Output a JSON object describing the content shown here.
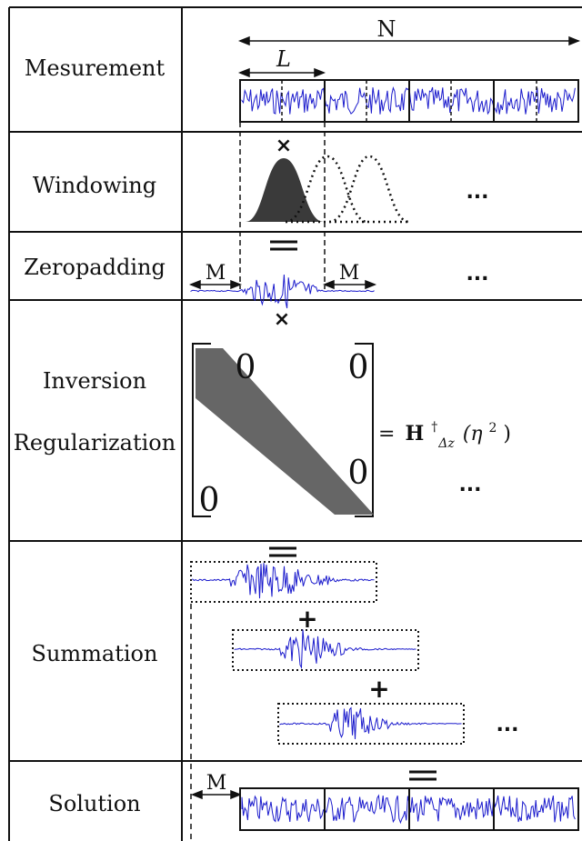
{
  "rows": [
    {
      "id": "measurement",
      "label": "Mesurement"
    },
    {
      "id": "windowing",
      "label": "Windowing"
    },
    {
      "id": "zeropadding",
      "label": "Zeropadding"
    },
    {
      "id": "inversion",
      "label_line1": "Inversion",
      "label_line2": "Regularization"
    },
    {
      "id": "summation",
      "label": "Summation"
    },
    {
      "id": "solution",
      "label": "Solution"
    }
  ],
  "symbols": {
    "N": "N",
    "L": "L",
    "M": "M",
    "ellipsis": "...",
    "zero": "0",
    "times": "×",
    "plus": "+"
  },
  "matrix_result": {
    "H": "H",
    "sup": "†",
    "sub": "Δz",
    "arg": "(η",
    "arg_pow": "2",
    "arg_close": ")",
    "eq": "="
  },
  "colors": {
    "signal": "#1a1acc",
    "ink": "#111111",
    "window_fill": "#3a3a3a",
    "matrix_band": "#666666"
  }
}
